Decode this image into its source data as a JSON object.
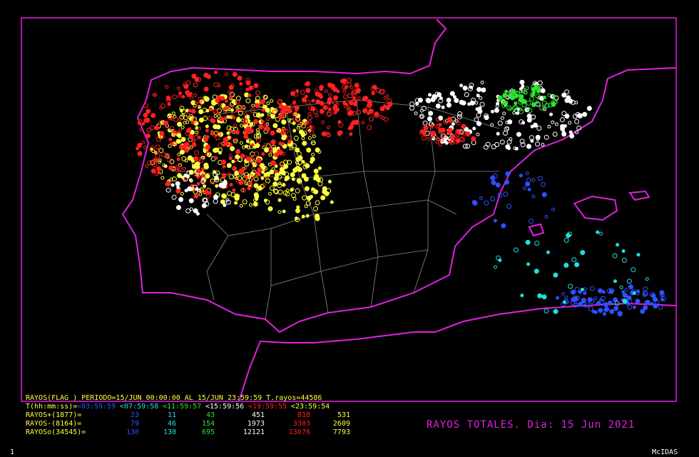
{
  "header": {
    "line": "RAYOS(FLAG ) PERIODO=15/JUN 00:00:00 AL 15/JUN 23:59:59 T.rayos=44586"
  },
  "table": {
    "time_label": "T(hh:mm:ss)=",
    "periods": [
      "<03:59:59",
      "<07:59:58",
      "<11:59:57",
      "<15:59:56",
      "<19:59:55",
      "<23:59:54"
    ],
    "rows": [
      [
        "RAYOS+(1877)=",
        "23",
        "11",
        "43",
        "451",
        "818",
        "531"
      ],
      [
        "RAYOS-(8164)=",
        "79",
        "46",
        "154",
        "1973",
        "3303",
        "2609"
      ],
      [
        "RAYOSo(34545)=",
        "130",
        "130",
        "695",
        "12121",
        "13676",
        "7793"
      ]
    ]
  },
  "title": "RAYOS TOTALES. Dia: 15 Jun 2021",
  "footer": {
    "frame": "1",
    "software": "McIDAS"
  }
}
